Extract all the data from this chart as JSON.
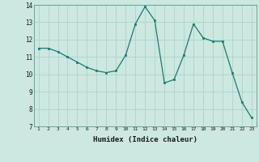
{
  "x": [
    1,
    2,
    3,
    4,
    5,
    6,
    7,
    8,
    9,
    10,
    11,
    12,
    13,
    14,
    15,
    16,
    17,
    18,
    19,
    20,
    21,
    22,
    23
  ],
  "y": [
    11.5,
    11.5,
    11.3,
    11.0,
    10.7,
    10.4,
    10.2,
    10.1,
    10.2,
    11.1,
    12.9,
    13.9,
    13.1,
    9.5,
    9.7,
    11.1,
    12.9,
    12.1,
    11.9,
    11.9,
    10.1,
    8.4,
    7.5
  ],
  "title": "",
  "xlabel": "Humidex (Indice chaleur)",
  "ylabel": "",
  "ylim": [
    7,
    14
  ],
  "xlim": [
    0.5,
    23.5
  ],
  "yticks": [
    7,
    8,
    9,
    10,
    11,
    12,
    13,
    14
  ],
  "xticks": [
    1,
    2,
    3,
    4,
    5,
    6,
    7,
    8,
    9,
    10,
    11,
    12,
    13,
    14,
    15,
    16,
    17,
    18,
    19,
    20,
    21,
    22,
    23
  ],
  "line_color": "#1a7a6e",
  "marker_color": "#1a7a6e",
  "bg_color": "#cce8e0",
  "grid_color": "#a8cfc8",
  "font_color": "#1a1a1a"
}
